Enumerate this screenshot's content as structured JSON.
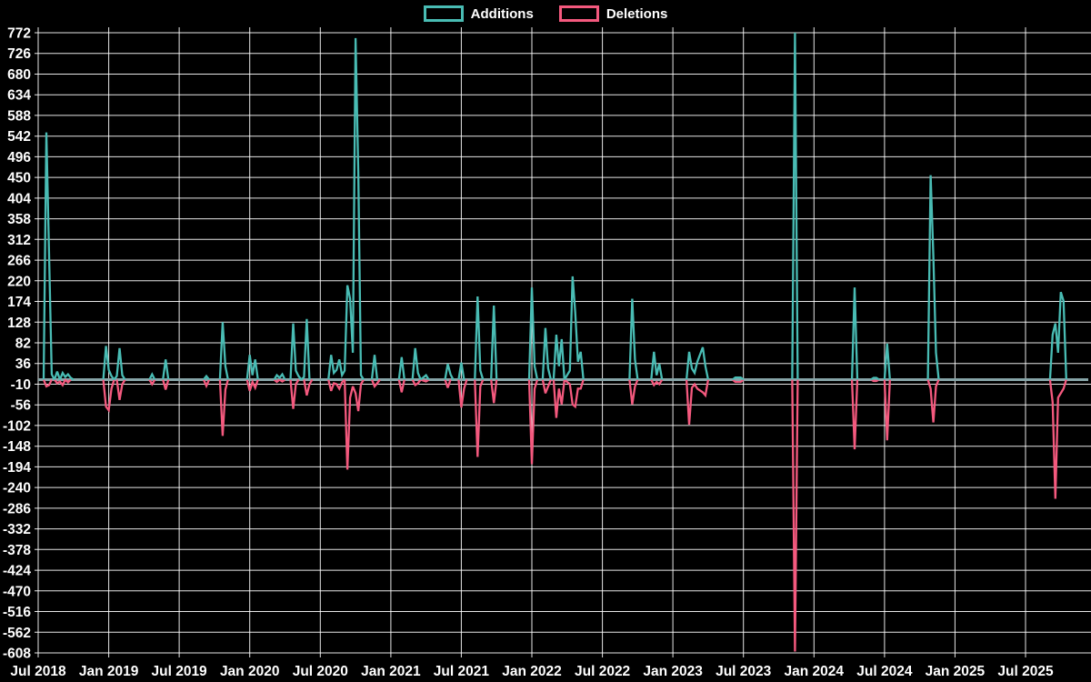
{
  "legend": {
    "additions_label": "Additions",
    "deletions_label": "Deletions"
  },
  "colors": {
    "background": "#000000",
    "grid": "#ffffff",
    "text": "#ffffff",
    "additions": "#49bcb4",
    "deletions": "#f4597e",
    "zero_baseline": "#87a5a8"
  },
  "chart_data": {
    "type": "line",
    "title": "",
    "xlabel": "",
    "ylabel": "",
    "grid": true,
    "legend_position": "top-center",
    "ylim": [
      -608,
      772
    ],
    "y_ticks": [
      772,
      726,
      680,
      634,
      588,
      542,
      496,
      450,
      404,
      358,
      312,
      266,
      220,
      174,
      128,
      82,
      36,
      -10,
      -56,
      -102,
      -148,
      -194,
      -240,
      -286,
      -332,
      -378,
      -424,
      -470,
      -516,
      -562,
      -608
    ],
    "x_ticks": [
      {
        "week": 0,
        "label": "Jul 2018"
      },
      {
        "week": 26,
        "label": "Jan 2019"
      },
      {
        "week": 52,
        "label": "Jul 2019"
      },
      {
        "week": 78,
        "label": "Jan 2020"
      },
      {
        "week": 104,
        "label": "Jul 2020"
      },
      {
        "week": 130,
        "label": "Jan 2021"
      },
      {
        "week": 156,
        "label": "Jul 2021"
      },
      {
        "week": 182,
        "label": "Jan 2022"
      },
      {
        "week": 208,
        "label": "Jul 2022"
      },
      {
        "week": 234,
        "label": "Jan 2023"
      },
      {
        "week": 260,
        "label": "Jul 2023"
      },
      {
        "week": 286,
        "label": "Jan 2024"
      },
      {
        "week": 312,
        "label": "Jul 2024"
      },
      {
        "week": 338,
        "label": "Jan 2025"
      },
      {
        "week": 364,
        "label": "Jul 2025"
      }
    ],
    "series": [
      {
        "name": "Additions",
        "color": "#49bcb4"
      },
      {
        "name": "Deletions",
        "color": "#f4597e"
      }
    ],
    "points_format": "[week_index_from_Jul_2018, additions, deletions]; values between listed weeks interpolate linearly, flat 0 elsewhere",
    "points_weekly": [
      [
        0,
        0,
        0
      ],
      [
        2,
        0,
        0
      ],
      [
        3,
        550,
        -15
      ],
      [
        4,
        285,
        -12
      ],
      [
        5,
        12,
        0
      ],
      [
        6,
        0,
        0
      ],
      [
        7,
        18,
        -8
      ],
      [
        8,
        0,
        -4
      ],
      [
        9,
        15,
        -12
      ],
      [
        10,
        6,
        0
      ],
      [
        11,
        12,
        -6
      ],
      [
        12,
        4,
        0
      ],
      [
        13,
        0,
        0
      ],
      [
        24,
        0,
        0
      ],
      [
        25,
        75,
        -60
      ],
      [
        26,
        22,
        -68
      ],
      [
        27,
        8,
        -20
      ],
      [
        28,
        0,
        0
      ],
      [
        29,
        8,
        0
      ],
      [
        30,
        70,
        -45
      ],
      [
        31,
        10,
        -10
      ],
      [
        32,
        0,
        0
      ],
      [
        41,
        0,
        0
      ],
      [
        42,
        12,
        -10
      ],
      [
        43,
        0,
        0
      ],
      [
        46,
        0,
        0
      ],
      [
        47,
        45,
        -22
      ],
      [
        48,
        0,
        0
      ],
      [
        61,
        0,
        0
      ],
      [
        62,
        8,
        -14
      ],
      [
        63,
        0,
        0
      ],
      [
        67,
        0,
        0
      ],
      [
        68,
        128,
        -125
      ],
      [
        69,
        30,
        -22
      ],
      [
        70,
        0,
        0
      ],
      [
        77,
        0,
        0
      ],
      [
        78,
        55,
        -25
      ],
      [
        79,
        10,
        -5
      ],
      [
        80,
        45,
        -18
      ],
      [
        81,
        0,
        0
      ],
      [
        87,
        0,
        0
      ],
      [
        88,
        10,
        -5
      ],
      [
        89,
        4,
        0
      ],
      [
        90,
        12,
        -4
      ],
      [
        91,
        0,
        0
      ],
      [
        93,
        0,
        0
      ],
      [
        94,
        125,
        -65
      ],
      [
        95,
        20,
        -10
      ],
      [
        96,
        8,
        0
      ],
      [
        97,
        0,
        0
      ],
      [
        98,
        6,
        0
      ],
      [
        99,
        135,
        -35
      ],
      [
        100,
        0,
        -10
      ],
      [
        101,
        0,
        0
      ],
      [
        107,
        0,
        0
      ],
      [
        108,
        55,
        -25
      ],
      [
        109,
        15,
        -8
      ],
      [
        110,
        22,
        -10
      ],
      [
        111,
        45,
        -20
      ],
      [
        112,
        10,
        -6
      ],
      [
        113,
        20,
        0
      ],
      [
        114,
        210,
        -200
      ],
      [
        115,
        180,
        -40
      ],
      [
        116,
        60,
        -15
      ],
      [
        117,
        760,
        -30
      ],
      [
        118,
        460,
        -70
      ],
      [
        119,
        10,
        -10
      ],
      [
        120,
        0,
        0
      ],
      [
        123,
        0,
        0
      ],
      [
        124,
        55,
        -15
      ],
      [
        125,
        0,
        -8
      ],
      [
        126,
        0,
        0
      ],
      [
        133,
        0,
        0
      ],
      [
        134,
        50,
        -28
      ],
      [
        135,
        0,
        0
      ],
      [
        138,
        0,
        0
      ],
      [
        139,
        70,
        -12
      ],
      [
        140,
        15,
        -8
      ],
      [
        141,
        0,
        0
      ],
      [
        143,
        10,
        -4
      ],
      [
        144,
        0,
        0
      ],
      [
        150,
        0,
        0
      ],
      [
        151,
        35,
        -18
      ],
      [
        152,
        12,
        0
      ],
      [
        153,
        0,
        0
      ],
      [
        155,
        0,
        0
      ],
      [
        156,
        38,
        -62
      ],
      [
        157,
        0,
        -20
      ],
      [
        158,
        0,
        0
      ],
      [
        161,
        0,
        0
      ],
      [
        162,
        185,
        -172
      ],
      [
        163,
        20,
        -15
      ],
      [
        164,
        0,
        0
      ],
      [
        167,
        0,
        0
      ],
      [
        168,
        165,
        -52
      ],
      [
        169,
        0,
        0
      ],
      [
        181,
        0,
        0
      ],
      [
        182,
        205,
        -188
      ],
      [
        183,
        30,
        -20
      ],
      [
        184,
        0,
        0
      ],
      [
        186,
        0,
        0
      ],
      [
        187,
        115,
        -30
      ],
      [
        188,
        25,
        -15
      ],
      [
        189,
        0,
        0
      ],
      [
        190,
        0,
        0
      ],
      [
        191,
        100,
        -85
      ],
      [
        192,
        30,
        -20
      ],
      [
        193,
        90,
        -55
      ],
      [
        194,
        0,
        0
      ],
      [
        196,
        20,
        -10
      ],
      [
        197,
        230,
        -55
      ],
      [
        198,
        150,
        -60
      ],
      [
        199,
        40,
        -20
      ],
      [
        200,
        62,
        -20
      ],
      [
        201,
        0,
        0
      ],
      [
        218,
        0,
        0
      ],
      [
        219,
        180,
        -55
      ],
      [
        220,
        45,
        -15
      ],
      [
        221,
        0,
        0
      ],
      [
        226,
        0,
        0
      ],
      [
        227,
        62,
        -12
      ],
      [
        228,
        10,
        -5
      ],
      [
        229,
        35,
        -10
      ],
      [
        230,
        0,
        0
      ],
      [
        239,
        0,
        0
      ],
      [
        240,
        62,
        -100
      ],
      [
        241,
        25,
        -18
      ],
      [
        242,
        15,
        -10
      ],
      [
        243,
        40,
        -20
      ],
      [
        245,
        72,
        -28
      ],
      [
        246,
        30,
        -35
      ],
      [
        247,
        0,
        0
      ],
      [
        256,
        0,
        0
      ],
      [
        257,
        5,
        -5
      ],
      [
        259,
        5,
        -5
      ],
      [
        260,
        0,
        0
      ],
      [
        278,
        0,
        0
      ],
      [
        279,
        772,
        -605
      ],
      [
        280,
        0,
        0
      ],
      [
        300,
        0,
        0
      ],
      [
        301,
        205,
        -155
      ],
      [
        302,
        0,
        0
      ],
      [
        307,
        0,
        0
      ],
      [
        308,
        4,
        -3
      ],
      [
        309,
        4,
        -3
      ],
      [
        310,
        0,
        0
      ],
      [
        312,
        0,
        0
      ],
      [
        313,
        80,
        -135
      ],
      [
        314,
        0,
        0
      ],
      [
        328,
        0,
        0
      ],
      [
        329,
        455,
        -20
      ],
      [
        330,
        275,
        -95
      ],
      [
        331,
        60,
        -15
      ],
      [
        332,
        0,
        0
      ],
      [
        373,
        0,
        0
      ],
      [
        374,
        100,
        -50
      ],
      [
        375,
        125,
        -265
      ],
      [
        376,
        60,
        -40
      ],
      [
        377,
        195,
        -30
      ],
      [
        378,
        175,
        -20
      ],
      [
        379,
        0,
        0
      ],
      [
        388,
        0,
        0
      ]
    ]
  }
}
